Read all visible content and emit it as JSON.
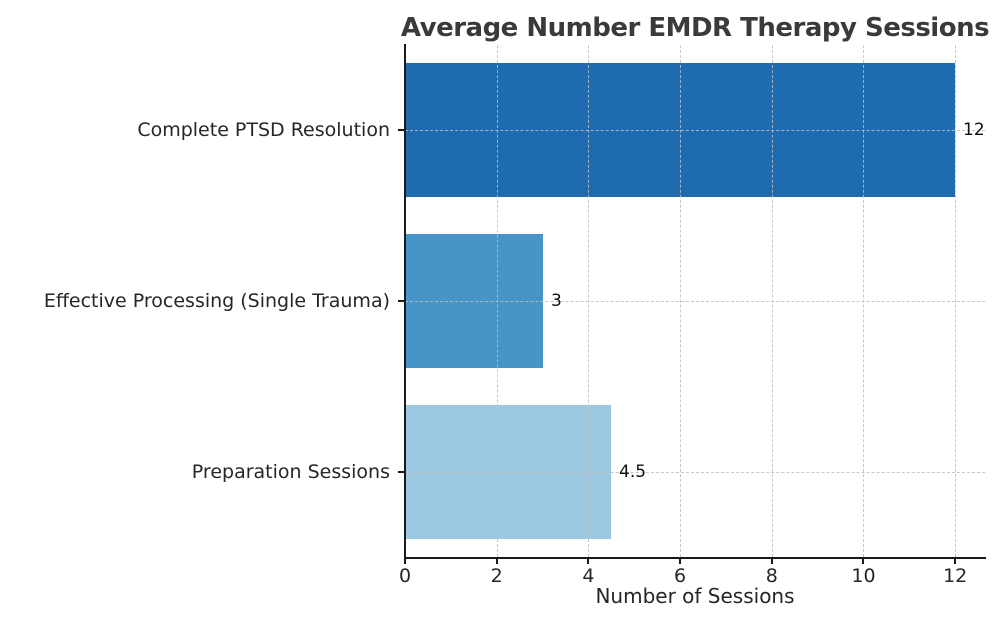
{
  "chart_data": {
    "type": "bar",
    "orientation": "horizontal",
    "title": "Average Number EMDR Therapy Sessions",
    "xlabel": "Number of Sessions",
    "ylabel": "",
    "categories": [
      "Complete PTSD Resolution",
      "Effective Processing (Single Trauma)",
      "Preparation Sessions"
    ],
    "values": [
      12,
      3,
      4.5
    ],
    "value_labels": [
      "12",
      "3",
      "4.5"
    ],
    "bar_colors": [
      "#1f6bb0",
      "#4694c8",
      "#9cc8e2"
    ],
    "xlim": [
      0,
      12.65
    ],
    "xticks": [
      0,
      2,
      4,
      6,
      8,
      10,
      12
    ],
    "grid": true,
    "grid_style": "dashed",
    "legend": null
  },
  "styles": {
    "title_color": "#3a3a3a",
    "text_color": "#262626",
    "axis_color": "#1a1a1a",
    "grid_color": "#bebebe",
    "background": "#ffffff"
  }
}
